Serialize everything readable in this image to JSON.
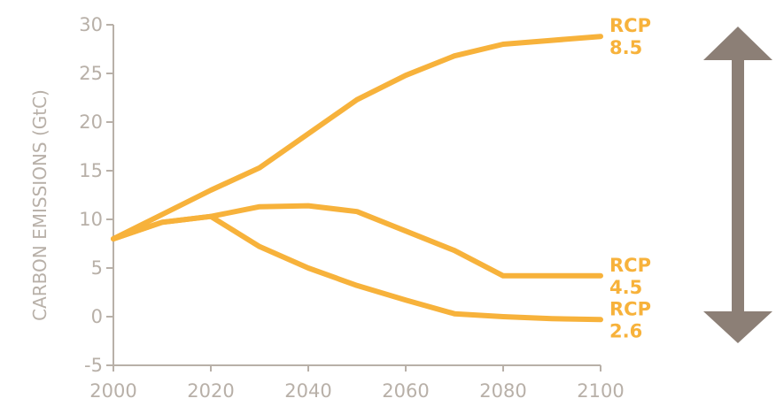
{
  "chart_data": {
    "type": "line",
    "title": "",
    "xlabel": "",
    "ylabel": "CARBON EMISSIONS (GtC)",
    "xlim": [
      2000,
      2100
    ],
    "ylim": [
      -5,
      30
    ],
    "xticks": [
      2000,
      2020,
      2040,
      2060,
      2080,
      2100
    ],
    "yticks": [
      -5,
      0,
      5,
      10,
      15,
      20,
      25,
      30
    ],
    "grid": false,
    "legend": "none",
    "line_color": "#f7b23b",
    "axis_color": "#b8b0a8",
    "arrow_color": "#8c7f76",
    "series": [
      {
        "name": "RCP 8.5",
        "label_lines": [
          "RCP",
          "8.5"
        ],
        "x": [
          2000,
          2010,
          2020,
          2030,
          2040,
          2050,
          2060,
          2070,
          2080,
          2090,
          2100
        ],
        "y": [
          8.0,
          10.5,
          13.0,
          15.3,
          18.8,
          22.3,
          24.8,
          26.8,
          28.0,
          28.4,
          28.8
        ]
      },
      {
        "name": "RCP 4.5",
        "label_lines": [
          "RCP",
          "4.5"
        ],
        "x": [
          2000,
          2010,
          2020,
          2030,
          2040,
          2050,
          2060,
          2070,
          2080,
          2090,
          2100
        ],
        "y": [
          8.0,
          9.7,
          10.3,
          11.3,
          11.4,
          10.8,
          8.8,
          6.8,
          4.2,
          4.2,
          4.2
        ]
      },
      {
        "name": "RCP 2.6",
        "label_lines": [
          "RCP",
          "2.6"
        ],
        "x": [
          2000,
          2010,
          2020,
          2030,
          2040,
          2050,
          2060,
          2070,
          2080,
          2090,
          2100
        ],
        "y": [
          8.0,
          9.7,
          10.3,
          7.2,
          5.0,
          3.2,
          1.7,
          0.3,
          0.0,
          -0.2,
          -0.3
        ]
      }
    ]
  },
  "annotations": {
    "range_arrow_icon": "double-headed-vertical-arrow"
  }
}
